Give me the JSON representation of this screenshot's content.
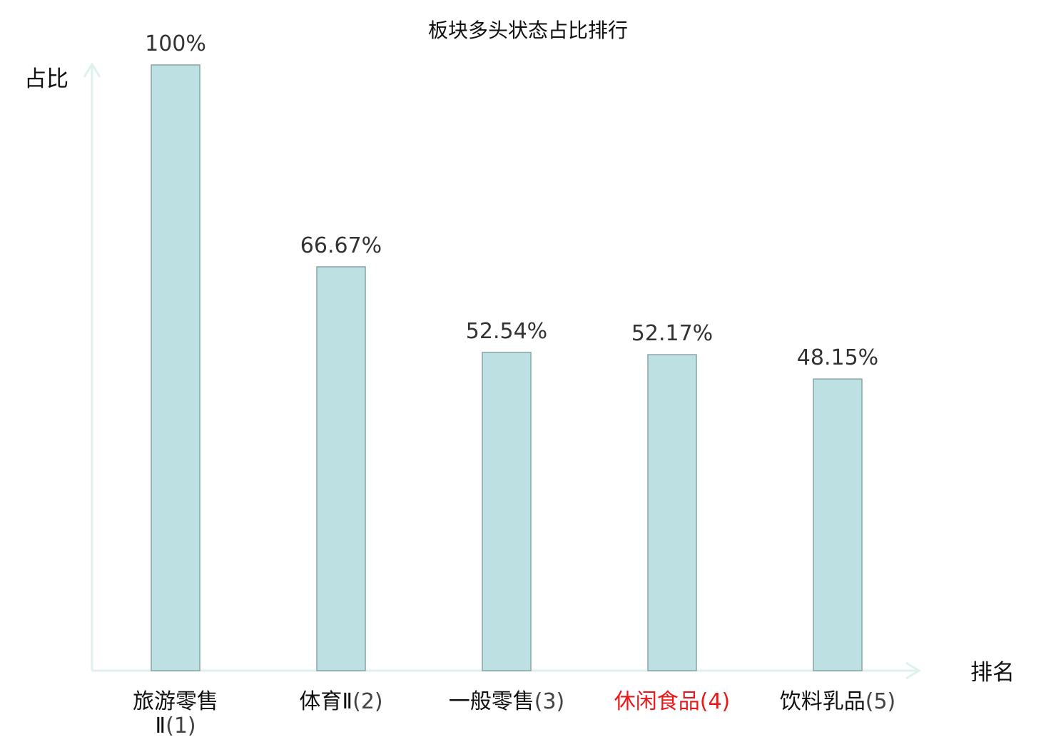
{
  "chart_data": {
    "type": "bar",
    "title": "板块多头状态占比排行",
    "ylabel": "占比",
    "xlabel": "排名",
    "ylim": [
      0,
      100
    ],
    "grid": false,
    "categories": [
      {
        "name_lines": [
          "旅游零售",
          "Ⅱ"
        ],
        "rank": "(1)",
        "highlight": false
      },
      {
        "name_lines": [
          "体育Ⅱ"
        ],
        "rank": "(2)",
        "highlight": false
      },
      {
        "name_lines": [
          "一般零售"
        ],
        "rank": "(3)",
        "highlight": false
      },
      {
        "name_lines": [
          "休闲食品"
        ],
        "rank": "(4)",
        "highlight": true
      },
      {
        "name_lines": [
          "饮料乳品"
        ],
        "rank": "(5)",
        "highlight": false
      }
    ],
    "values": [
      100,
      66.67,
      52.54,
      52.17,
      48.15
    ],
    "value_labels": [
      "100%",
      "66.67%",
      "52.54%",
      "52.17%",
      "48.15%"
    ],
    "colors": {
      "bar_fill": "#bde1e3",
      "bar_stroke": "#87a4a6",
      "axis": "#dff1ef",
      "highlight_label": "#e8191a",
      "label": "#111111",
      "value_label": "#333333"
    }
  }
}
